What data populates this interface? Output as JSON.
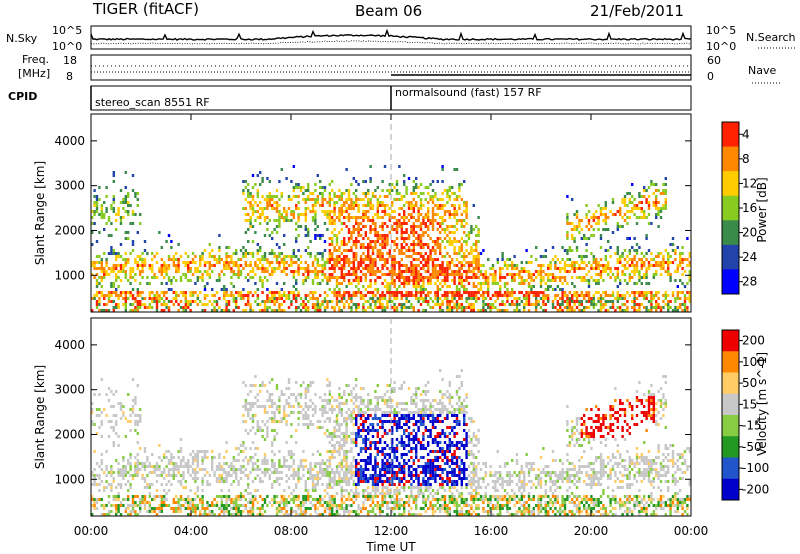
{
  "header": {
    "left_title": "TIGER (fitACF)",
    "center_title": "Beam 06",
    "right_title": "21/Feb/2011"
  },
  "status_panels": {
    "nsky": {
      "label": "N.Sky",
      "left_ticks": [
        "10^5",
        "10^0"
      ],
      "right_label": "N.Search",
      "right_ticks": [
        "10^5",
        "10^0"
      ]
    },
    "freq": {
      "label_line1": "Freq.",
      "label_line2": "[MHz]",
      "left_ticks": [
        "18",
        "8"
      ],
      "right_label": "Nave",
      "right_ticks": [
        "60",
        "0"
      ]
    },
    "cpid": {
      "label": "CPID",
      "segments": [
        {
          "start_hour": 0,
          "text": "stereo_scan 8551 RF"
        },
        {
          "start_hour": 12,
          "text": "normalsound (fast) 157 RF"
        }
      ]
    }
  },
  "chart_data": [
    {
      "type": "heatmap",
      "ylabel": "Slant Range [km]",
      "ylim": [
        180,
        4600
      ],
      "y_ticks": [
        "1000",
        "2000",
        "3000",
        "4000"
      ],
      "xlim": [
        0,
        24
      ],
      "colorbar": {
        "label": "Power [dB]",
        "ticks": [
          "4",
          "8",
          "12",
          "16",
          "20",
          "24",
          "28"
        ],
        "colors": [
          "#0000ff",
          "#2244aa",
          "#3a8a4a",
          "#88cc22",
          "#ffcc00",
          "#ff8800",
          "#ff2200"
        ]
      }
    },
    {
      "type": "heatmap",
      "ylabel": "Slant Range [km]",
      "ylim": [
        180,
        4600
      ],
      "y_ticks": [
        "1000",
        "2000",
        "3000",
        "4000"
      ],
      "xlim": [
        0,
        24
      ],
      "xlabel": "Time UT",
      "x_ticks": [
        "00:00",
        "04:00",
        "08:00",
        "12:00",
        "16:00",
        "20:00",
        "00:00"
      ],
      "colorbar": {
        "label": "Velocity [m s^-1]",
        "ticks": [
          "200",
          "100",
          "50",
          "15",
          "-15",
          "-50",
          "-100",
          "-200"
        ],
        "colors": [
          "#0000cc",
          "#2255cc",
          "#229922",
          "#88cc44",
          "#c8c8c8",
          "#ffcc66",
          "#ff8800",
          "#ee0000"
        ]
      }
    }
  ]
}
